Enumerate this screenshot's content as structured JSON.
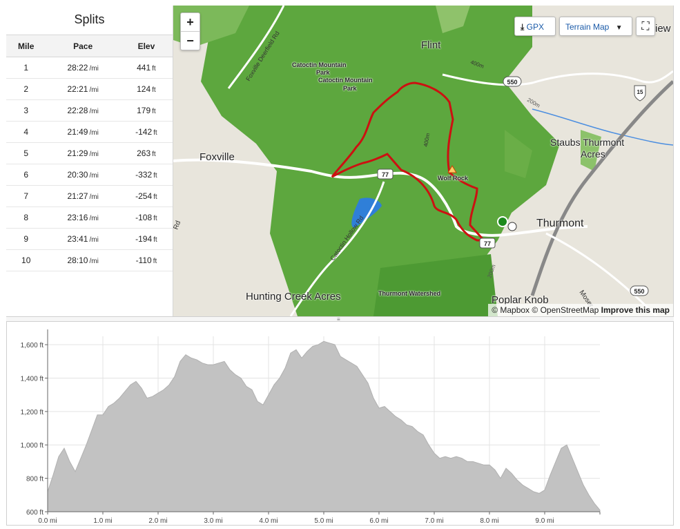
{
  "splits": {
    "title": "Splits",
    "columns": [
      "Mile",
      "Pace",
      "Elev"
    ],
    "pace_unit": "/mi",
    "elev_unit": "ft",
    "rows": [
      {
        "mile": "1",
        "pace": "28:22",
        "elev": "441"
      },
      {
        "mile": "2",
        "pace": "22:21",
        "elev": "124"
      },
      {
        "mile": "3",
        "pace": "22:28",
        "elev": "179"
      },
      {
        "mile": "4",
        "pace": "21:49",
        "elev": "-142"
      },
      {
        "mile": "5",
        "pace": "21:29",
        "elev": "263"
      },
      {
        "mile": "6",
        "pace": "20:30",
        "elev": "-332"
      },
      {
        "mile": "7",
        "pace": "21:27",
        "elev": "-254"
      },
      {
        "mile": "8",
        "pace": "23:16",
        "elev": "-108"
      },
      {
        "mile": "9",
        "pace": "23:41",
        "elev": "-194"
      },
      {
        "mile": "10",
        "pace": "28:10",
        "elev": "-110"
      }
    ]
  },
  "map": {
    "zoom_in": "+",
    "zoom_out": "−",
    "gpx_label": "GPX",
    "terrain_label": "Terrain Map",
    "attribution_mapbox": "© Mapbox",
    "attribution_osm": "© OpenStreetMap",
    "improve_link": "Improve this map",
    "labels": {
      "flint": "Flint",
      "foxville": "Foxville",
      "thurmont": "Thurmont",
      "staubs": "Staubs Thurmont",
      "staubs2": "Acres",
      "hunting": "Hunting Creek Acres",
      "poplar": "Poplar Knob",
      "catoctin1": "Catoctin Mountain",
      "catoctin1b": "Park",
      "catoctin2": "Catoctin Mountain",
      "catoctin2b": "Park",
      "wolfrock": "Wolf Rock",
      "watershed": "Thurmont Watershed",
      "deerfield": "Foxville Deerfield Rd",
      "hollow": "Catoctin Hollow Rd",
      "moser": "Moser",
      "view": "iew",
      "rd": "Rd",
      "shield77a": "77",
      "shield77b": "77",
      "shield550a": "550",
      "shield550b": "550",
      "shield15": "15",
      "contour400a": "400m",
      "contour400b": "400m",
      "contour200a": "200m",
      "contour200b": "200m"
    },
    "colors": {
      "route": "#cc1111",
      "forest": "#5aa83c",
      "water": "#2f7fd8",
      "start": "#1c8a1c"
    }
  },
  "chart_data": {
    "type": "area",
    "title": "",
    "xlabel": "",
    "ylabel": "",
    "x_unit": "mi",
    "y_unit": "ft",
    "xlim": [
      0,
      10
    ],
    "ylim": [
      600,
      1650
    ],
    "xticks": [
      "0.0 mi",
      "1.0 mi",
      "2.0 mi",
      "3.0 mi",
      "4.0 mi",
      "5.0 mi",
      "6.0 mi",
      "7.0 mi",
      "8.0 mi",
      "9.0 mi"
    ],
    "yticks": [
      "600 ft",
      "800 ft",
      "1,000 ft",
      "1,200 ft",
      "1,400 ft",
      "1,600 ft"
    ],
    "grid": true,
    "fill_color": "#c2c2c2",
    "x": [
      0,
      0.1,
      0.2,
      0.3,
      0.4,
      0.5,
      0.6,
      0.7,
      0.8,
      0.9,
      1.0,
      1.1,
      1.2,
      1.3,
      1.4,
      1.5,
      1.6,
      1.7,
      1.8,
      1.9,
      2.0,
      2.1,
      2.2,
      2.3,
      2.4,
      2.5,
      2.6,
      2.7,
      2.8,
      2.9,
      3.0,
      3.1,
      3.2,
      3.3,
      3.4,
      3.5,
      3.6,
      3.7,
      3.8,
      3.9,
      4.0,
      4.1,
      4.2,
      4.3,
      4.4,
      4.5,
      4.6,
      4.7,
      4.8,
      4.9,
      5.0,
      5.1,
      5.2,
      5.3,
      5.4,
      5.5,
      5.6,
      5.7,
      5.8,
      5.9,
      6.0,
      6.1,
      6.2,
      6.3,
      6.4,
      6.5,
      6.6,
      6.7,
      6.8,
      6.9,
      7.0,
      7.1,
      7.2,
      7.3,
      7.4,
      7.5,
      7.6,
      7.7,
      7.8,
      7.9,
      8.0,
      8.1,
      8.2,
      8.3,
      8.4,
      8.5,
      8.6,
      8.7,
      8.8,
      8.9,
      9.0,
      9.1,
      9.2,
      9.3,
      9.4,
      9.5,
      9.6,
      9.7,
      9.8,
      9.9,
      10.0
    ],
    "y": [
      720,
      820,
      930,
      980,
      900,
      840,
      920,
      1000,
      1090,
      1180,
      1180,
      1230,
      1250,
      1280,
      1320,
      1360,
      1380,
      1340,
      1280,
      1290,
      1310,
      1330,
      1360,
      1410,
      1500,
      1540,
      1520,
      1510,
      1490,
      1480,
      1480,
      1490,
      1500,
      1450,
      1420,
      1400,
      1350,
      1330,
      1260,
      1240,
      1300,
      1360,
      1400,
      1460,
      1550,
      1570,
      1520,
      1560,
      1590,
      1600,
      1620,
      1610,
      1600,
      1530,
      1510,
      1490,
      1470,
      1420,
      1370,
      1280,
      1220,
      1230,
      1200,
      1170,
      1150,
      1120,
      1110,
      1080,
      1060,
      1000,
      950,
      920,
      930,
      920,
      930,
      920,
      900,
      900,
      890,
      880,
      880,
      850,
      800,
      860,
      830,
      790,
      760,
      740,
      720,
      710,
      730,
      820,
      900,
      980,
      1000,
      920,
      840,
      760,
      700,
      650,
      610
    ]
  }
}
